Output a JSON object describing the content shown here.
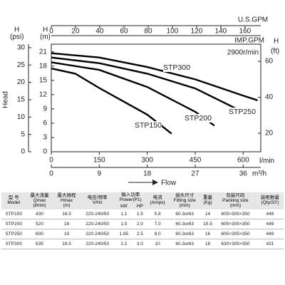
{
  "chart_data": {
    "type": "line",
    "speed_label": "2900r/min",
    "x_label": "Flow",
    "x_unit": "l/min",
    "xlim": [
      0,
      655
    ],
    "xticks": [
      0,
      150,
      300,
      450,
      600
    ],
    "x2_unit": "m³/h",
    "x2lim": [
      0,
      39.3
    ],
    "x2ticks": [
      0,
      9,
      18,
      27,
      36
    ],
    "top_unit": "U.S.GPM",
    "toplim": [
      0,
      173
    ],
    "topticks": [
      0,
      20,
      40,
      60,
      80,
      100,
      120,
      140,
      160
    ],
    "top2_unit": "IMP.GPM",
    "y_label": "Head",
    "y_symbol": "H",
    "y_unit": "(m)",
    "ylim": [
      0,
      22.6
    ],
    "yticks": [
      0,
      3,
      6,
      9,
      12,
      15,
      18,
      21
    ],
    "ypsi_unit": "(psi)",
    "ypsilim": [
      0,
      31
    ],
    "ypsiticks": [
      0,
      5,
      10,
      15,
      20,
      25,
      30
    ],
    "y2_unit": "(ft)",
    "y2lim": [
      9.7,
      69.5
    ],
    "y2ticks": [
      20,
      40,
      60
    ],
    "series": [
      {
        "name": "STP300",
        "color": "#000000",
        "x": [
          0,
          150,
          300,
          450,
          600,
          645
        ],
        "values": [
          20.7,
          19.8,
          17.8,
          15.2,
          11.8,
          10.8
        ]
      },
      {
        "name": "STP250",
        "color": "#000000",
        "x": [
          0,
          150,
          300,
          450,
          622
        ],
        "values": [
          19.8,
          18.6,
          16.4,
          13.3,
          7.6
        ]
      },
      {
        "name": "STP200",
        "color": "#000000",
        "x": [
          0,
          150,
          300,
          450,
          510
        ],
        "values": [
          18.8,
          17.2,
          13.6,
          8.4,
          5.5
        ]
      },
      {
        "name": "STP150",
        "color": "#000000",
        "x": [
          0,
          75,
          150,
          300,
          376
        ],
        "values": [
          17.5,
          16.4,
          13.4,
          7.8,
          3.8
        ]
      }
    ]
  },
  "table": {
    "header": [
      "型 号\nModel",
      "最大流量\nQmax\n(l/min)",
      "最大扬程\nHmax\n(m)",
      "电压/频率\nV/Hz",
      "输入功率\nPower(P1)",
      "电流\n(Amps)",
      "接头尺寸\nFitting size\n(mm)",
      "重量\n(Kg)",
      "包装尺码\nPacking size\n(mm)",
      "装柜数量\n(Qty/20')"
    ],
    "subheader": [
      "kW",
      "HP"
    ],
    "rows": [
      [
        "STP150",
        "430",
        "16.5",
        "220-240/50",
        "1.1",
        "1.5",
        "5.8",
        "60.3or63",
        "14",
        "605×305×350",
        "449"
      ],
      [
        "STP200",
        "520",
        "18",
        "220-240/50",
        "1.5",
        "2.0",
        "7.0",
        "60.3or63",
        "15.5",
        "605×305×350",
        "449"
      ],
      [
        "STP250",
        "600",
        "19",
        "220-240/50",
        "1.85",
        "2.5",
        "8.0",
        "60.3or63",
        "16",
        "605×305×350",
        "449"
      ],
      [
        "STP300",
        "635",
        "19.5",
        "220-240/50",
        "2.2",
        "3.0",
        "10",
        "60.3or63",
        "18",
        "630×305×350",
        "431"
      ]
    ]
  }
}
